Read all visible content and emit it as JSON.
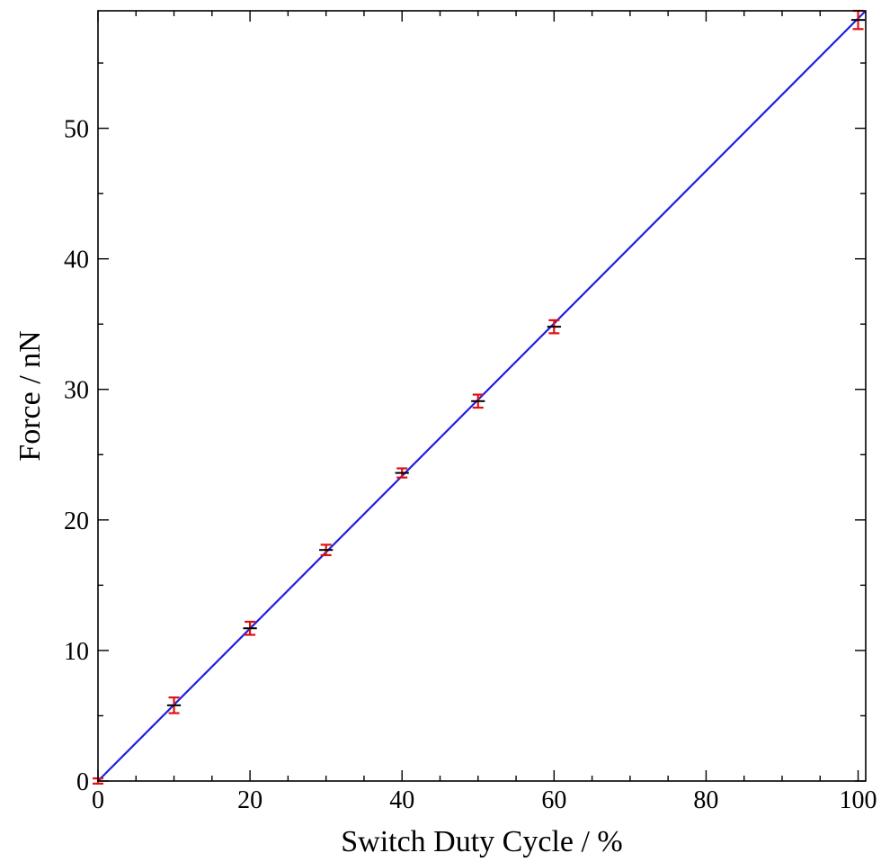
{
  "chart_data": {
    "type": "scatter",
    "title": "",
    "xlabel": "Switch Duty Cycle / %",
    "ylabel": "Force / nN",
    "xlim": [
      0,
      101
    ],
    "ylim": [
      0,
      59
    ],
    "xticks": [
      0,
      20,
      40,
      60,
      80,
      100
    ],
    "yticks": [
      0,
      10,
      20,
      30,
      40,
      50
    ],
    "x_minor_step": 5,
    "y_minor_step": 5,
    "grid": false,
    "legend": "none",
    "tick_labels": {
      "x": [
        "0",
        "20",
        "40",
        "60",
        "80",
        "100"
      ],
      "y": [
        "0",
        "10",
        "20",
        "30",
        "40",
        "50"
      ]
    },
    "series": [
      {
        "type": "scatter_errorbar",
        "points": [
          {
            "x": 0,
            "y": 0.0,
            "xerr": 0.0,
            "yerr": 0.2
          },
          {
            "x": 10,
            "y": 5.8,
            "xerr": 0.9,
            "yerr": 0.6
          },
          {
            "x": 20,
            "y": 11.7,
            "xerr": 0.9,
            "yerr": 0.5
          },
          {
            "x": 30,
            "y": 17.7,
            "xerr": 0.9,
            "yerr": 0.4
          },
          {
            "x": 40,
            "y": 23.6,
            "xerr": 0.9,
            "yerr": 0.35
          },
          {
            "x": 50,
            "y": 29.1,
            "xerr": 0.9,
            "yerr": 0.5
          },
          {
            "x": 60,
            "y": 34.8,
            "xerr": 0.9,
            "yerr": 0.5
          },
          {
            "x": 100,
            "y": 58.3,
            "xerr": 0.9,
            "yerr": 0.7
          }
        ]
      },
      {
        "type": "line",
        "x": [
          0,
          101
        ],
        "y": [
          0,
          59.0
        ]
      }
    ],
    "colors": {
      "fit_line": "#1f1fe0",
      "y_error": "#e01010",
      "x_error": "#000000",
      "axes": "#000000"
    }
  }
}
